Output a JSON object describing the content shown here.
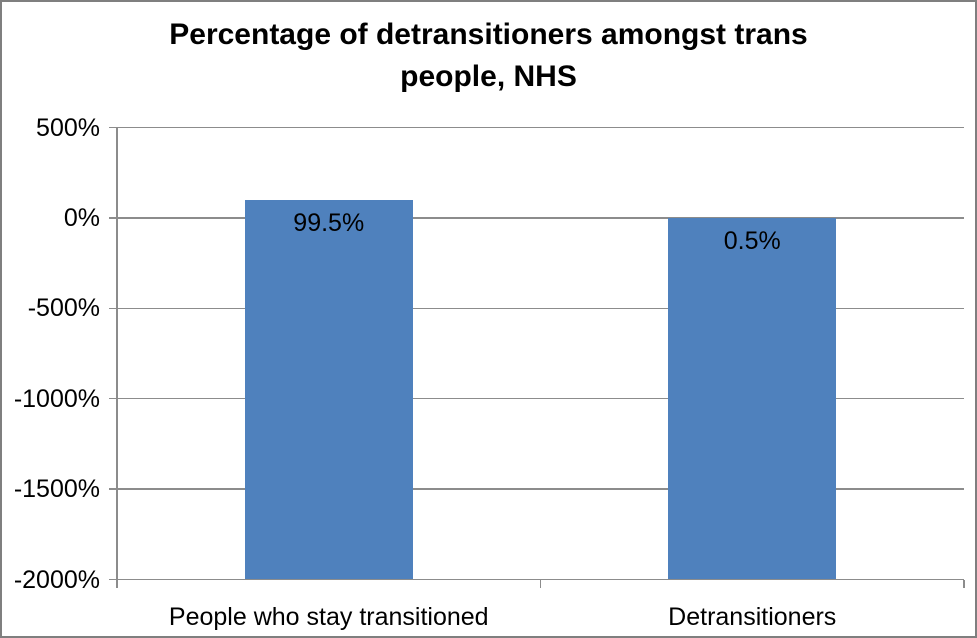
{
  "title": {
    "line1": "Percentage of detransitioners amongst trans",
    "line2": "people, NHS"
  },
  "chart_data": {
    "type": "bar",
    "title": "Percentage of detransitioners amongst trans people, NHS",
    "categories": [
      "People who stay transitioned",
      "Detransitioners"
    ],
    "values": [
      99.5,
      0.5
    ],
    "data_labels": [
      "99.5%",
      "0.5%"
    ],
    "xlabel": "",
    "ylabel": "",
    "ylim": [
      -2000,
      500
    ],
    "y_ticks": [
      500,
      0,
      -500,
      -1000,
      -1500,
      -2000
    ],
    "y_tick_labels": [
      "500%",
      "0%",
      "-500%",
      "-1000%",
      "-1500%",
      "-2000%"
    ],
    "grid": true,
    "legend": false
  },
  "colors": {
    "bar": "#4F81BD",
    "gridline": "#8C8C8C",
    "axis": "#8C8C8C",
    "border": "#7F7F7F",
    "background": "#FFFFFF",
    "text": "#000000"
  }
}
